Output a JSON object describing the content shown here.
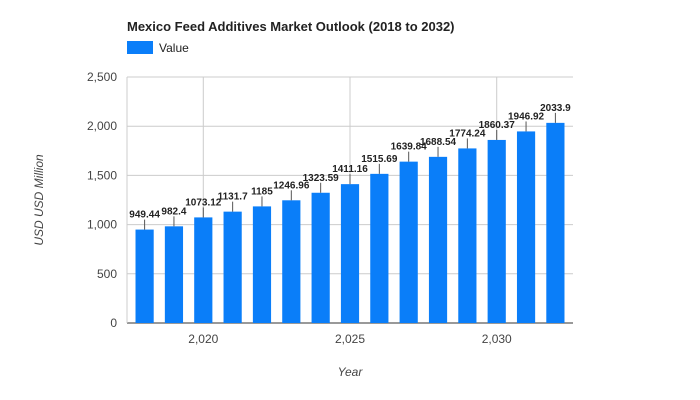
{
  "chart_data": {
    "type": "bar",
    "title": "Mexico Feed Additives Market Outlook (2018 to 2032)",
    "xlabel": "Year",
    "ylabel": "USD USD Million",
    "legend": {
      "entries": [
        "Value"
      ],
      "placement": "top-left"
    },
    "series": [
      {
        "name": "Value",
        "color": "#0a7ef9",
        "x": [
          2018,
          2019,
          2020,
          2021,
          2022,
          2023,
          2024,
          2025,
          2026,
          2027,
          2028,
          2029,
          2030,
          2031,
          2032
        ],
        "values": [
          949.44,
          982.4,
          1073.12,
          1131.7,
          1185,
          1246.96,
          1323.59,
          1411.16,
          1515.69,
          1639.84,
          1688.54,
          1774.24,
          1860.37,
          1946.92,
          2033.9
        ],
        "labels": [
          "949.44",
          "982.4",
          "1073.12",
          "1131.7",
          "1185",
          "1246.96",
          "1323.59",
          "1411.16",
          "1515.69",
          "1639.84",
          "1688.54",
          "1774.24",
          "1860.37",
          "1946.92",
          "2033.9"
        ]
      }
    ],
    "ylim": [
      0,
      2500
    ],
    "yticks": [
      0,
      500,
      1000,
      1500,
      2000,
      2500
    ],
    "ytick_labels": [
      "0",
      "500",
      "1,000",
      "1,500",
      "2,000",
      "2,500"
    ],
    "xlim": [
      2017.4,
      2032.6
    ],
    "xticks": [
      2020,
      2025,
      2030
    ],
    "xtick_labels": [
      "2,020",
      "2,025",
      "2,030"
    ],
    "grid": true
  }
}
